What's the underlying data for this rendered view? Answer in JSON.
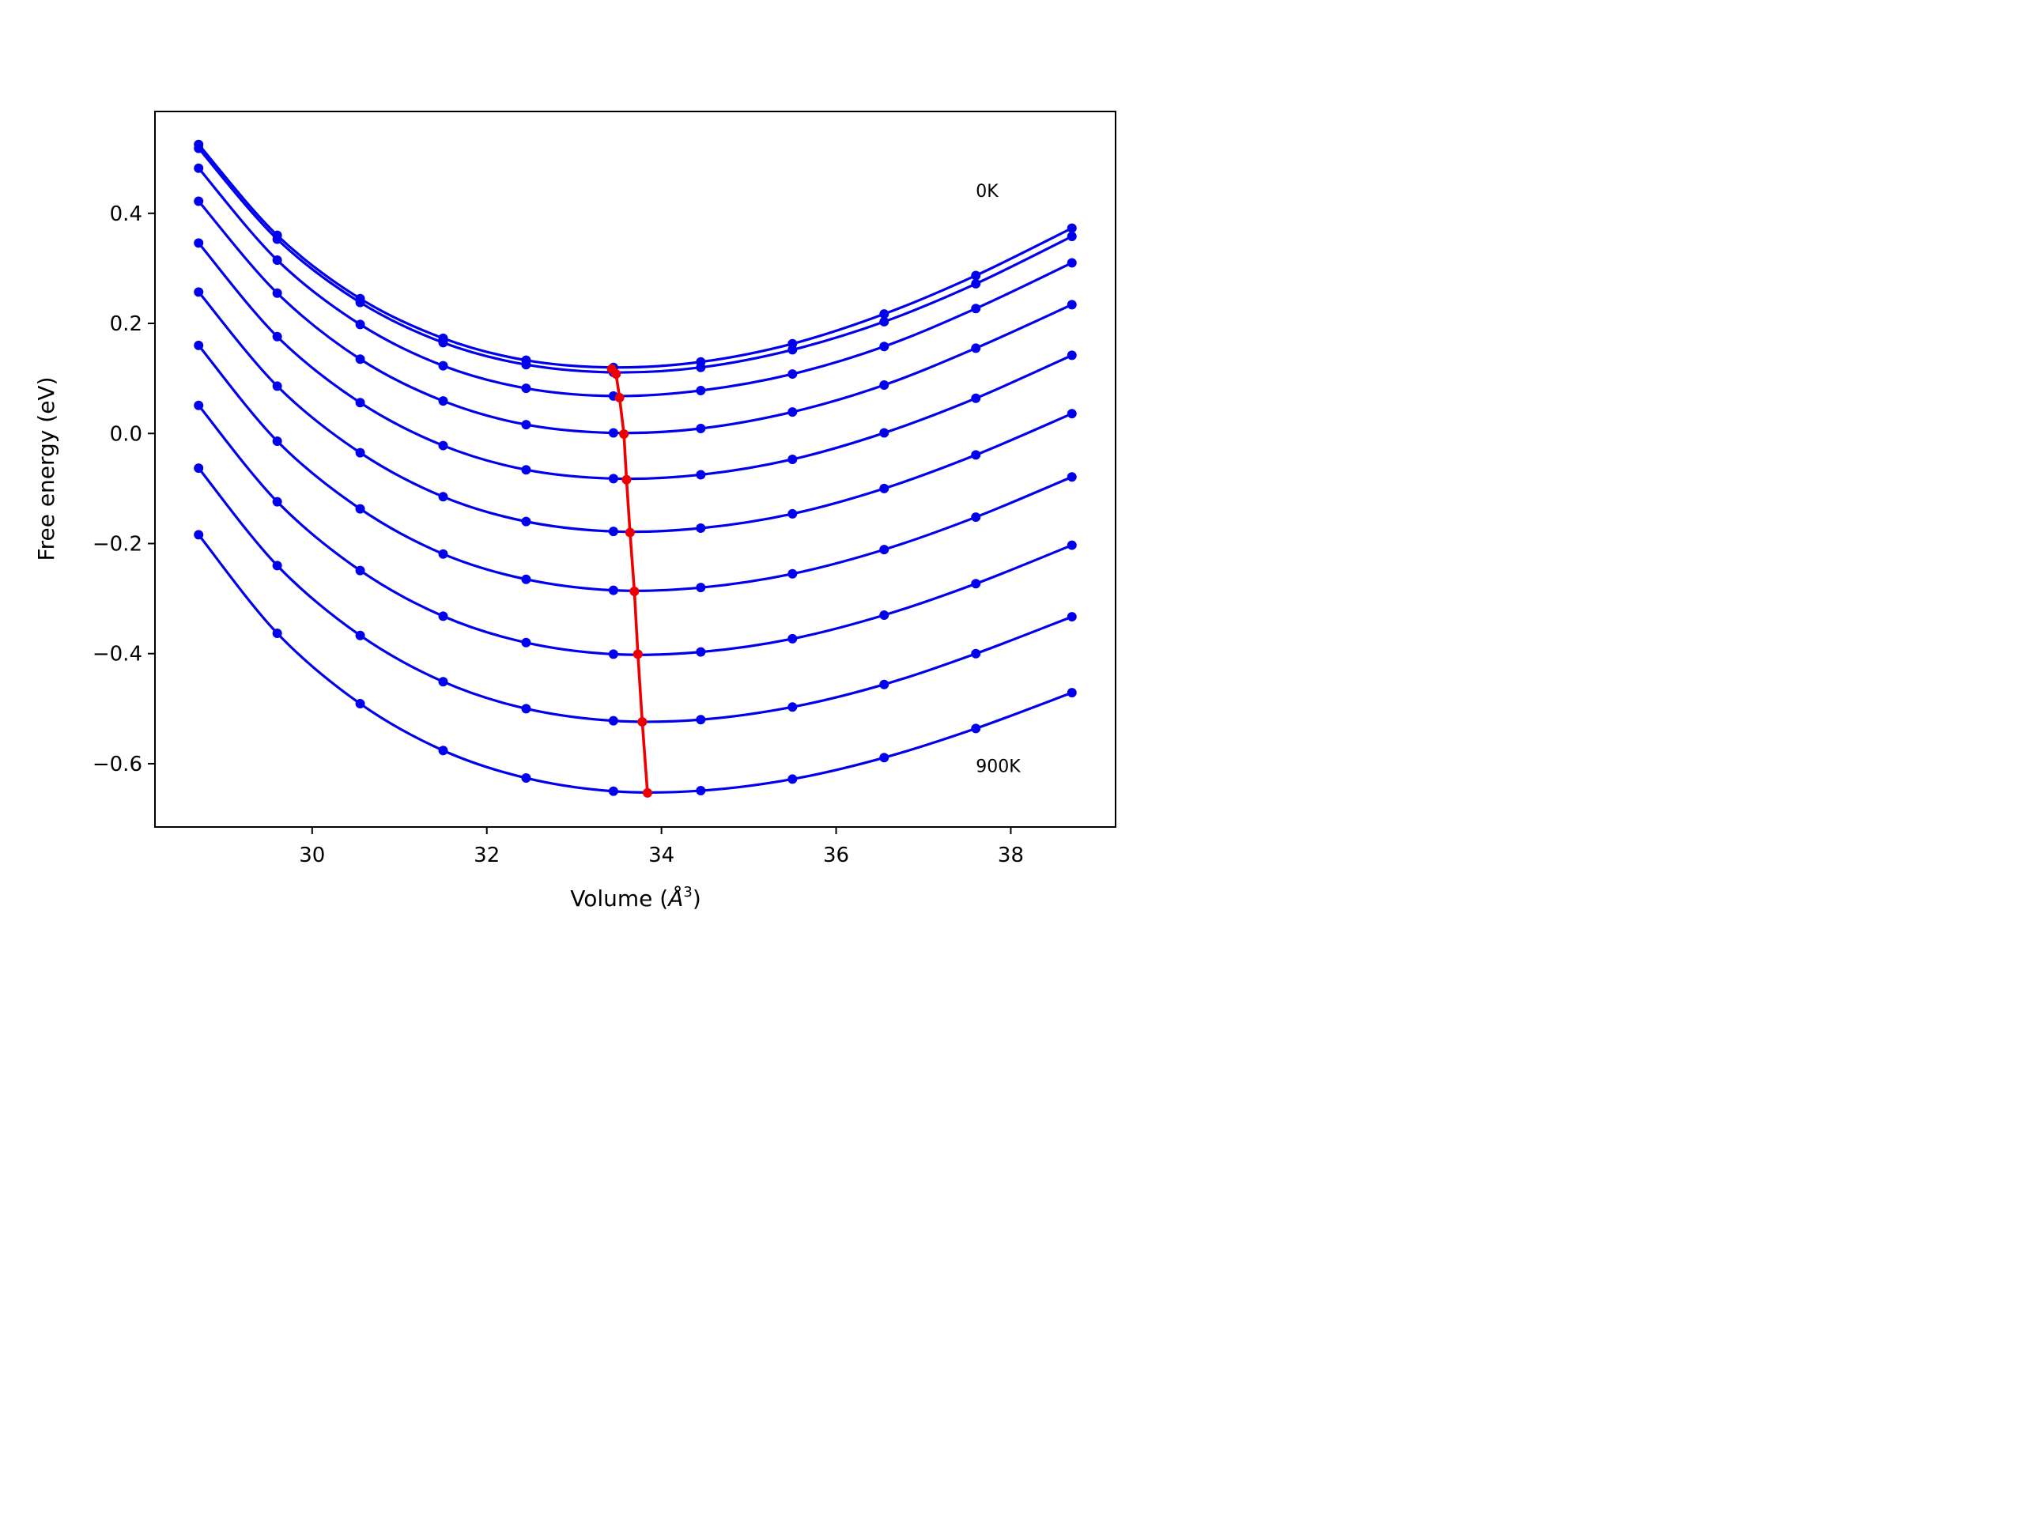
{
  "chart_data": {
    "type": "line",
    "xlabel_main": "Volume (",
    "xlabel_unit": "Å",
    "xlabel_exp": "3",
    "xlabel_close": ")",
    "ylabel": "Free energy (eV)",
    "xlim": [
      28.2,
      39.2
    ],
    "ylim": [
      -0.715,
      0.585
    ],
    "xticks": [
      30,
      32,
      34,
      36,
      38
    ],
    "yticks": [
      -0.6,
      -0.4,
      -0.2,
      0.0,
      0.2,
      0.4
    ],
    "ytick_labels": [
      "−0.6",
      "−0.4",
      "−0.2",
      "0.0",
      "0.2",
      "0.4"
    ],
    "annotations": [
      {
        "text": "0K",
        "x": 37.6,
        "y": 0.43
      },
      {
        "text": "900K",
        "x": 37.6,
        "y": -0.615
      }
    ],
    "volumes": [
      28.7,
      29.6,
      30.55,
      31.5,
      32.45,
      33.45,
      34.45,
      35.5,
      36.55,
      37.6,
      38.7
    ],
    "series_color": "#0000ee",
    "series": [
      {
        "values": [
          0.525,
          0.36,
          0.245,
          0.173,
          0.133,
          0.12,
          0.13,
          0.163,
          0.217,
          0.287,
          0.373
        ]
      },
      {
        "values": [
          0.518,
          0.353,
          0.238,
          0.165,
          0.125,
          0.111,
          0.12,
          0.152,
          0.203,
          0.272,
          0.358
        ]
      },
      {
        "values": [
          0.482,
          0.315,
          0.198,
          0.123,
          0.082,
          0.068,
          0.078,
          0.108,
          0.158,
          0.227,
          0.31
        ]
      },
      {
        "values": [
          0.422,
          0.255,
          0.135,
          0.059,
          0.016,
          0.001,
          0.009,
          0.039,
          0.088,
          0.155,
          0.234
        ]
      },
      {
        "values": [
          0.346,
          0.176,
          0.056,
          -0.022,
          -0.066,
          -0.082,
          -0.075,
          -0.047,
          0.001,
          0.064,
          0.142
        ]
      },
      {
        "values": [
          0.257,
          0.086,
          -0.035,
          -0.115,
          -0.16,
          -0.178,
          -0.172,
          -0.146,
          -0.1,
          -0.039,
          0.036
        ]
      },
      {
        "values": [
          0.16,
          -0.014,
          -0.137,
          -0.219,
          -0.265,
          -0.285,
          -0.28,
          -0.255,
          -0.211,
          -0.152,
          -0.079
        ]
      },
      {
        "values": [
          0.051,
          -0.124,
          -0.249,
          -0.332,
          -0.38,
          -0.401,
          -0.397,
          -0.373,
          -0.33,
          -0.273,
          -0.203
        ]
      },
      {
        "values": [
          -0.063,
          -0.24,
          -0.367,
          -0.451,
          -0.5,
          -0.522,
          -0.52,
          -0.497,
          -0.456,
          -0.4,
          -0.333
        ]
      },
      {
        "values": [
          -0.184,
          -0.363,
          -0.491,
          -0.576,
          -0.626,
          -0.65,
          -0.649,
          -0.628,
          -0.589,
          -0.536,
          -0.471
        ]
      }
    ],
    "minimum_series": {
      "color": "#ee0000",
      "x": [
        33.43,
        33.48,
        33.52,
        33.57,
        33.6,
        33.64,
        33.69,
        33.73,
        33.78,
        33.84
      ],
      "y": [
        0.117,
        0.108,
        0.065,
        -0.001,
        -0.084,
        -0.18,
        -0.287,
        -0.401,
        -0.524,
        -0.653
      ]
    }
  }
}
